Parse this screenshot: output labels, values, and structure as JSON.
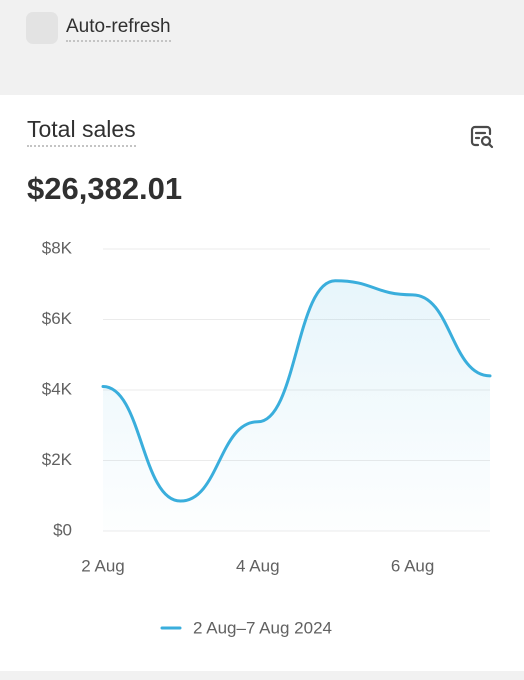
{
  "auto_refresh": "Auto-refresh",
  "card": {
    "title": "Total sales",
    "total": "$26,382.01"
  },
  "chart_data": {
    "type": "line",
    "categories": [
      "2 Aug",
      null,
      "4 Aug",
      null,
      "6 Aug",
      null
    ],
    "series": [
      {
        "name": "2 Aug–7 Aug 2024",
        "color": "#3aaedc",
        "values": [
          4100,
          850,
          3100,
          7100,
          6700,
          4400
        ]
      }
    ],
    "ylim": [
      0,
      8000
    ],
    "yticks": [
      {
        "value": 0,
        "label": "$0"
      },
      {
        "value": 2000,
        "label": "$2K"
      },
      {
        "value": 4000,
        "label": "$4K"
      },
      {
        "value": 6000,
        "label": "$6K"
      },
      {
        "value": 8000,
        "label": "$8K"
      }
    ],
    "grid": true
  }
}
